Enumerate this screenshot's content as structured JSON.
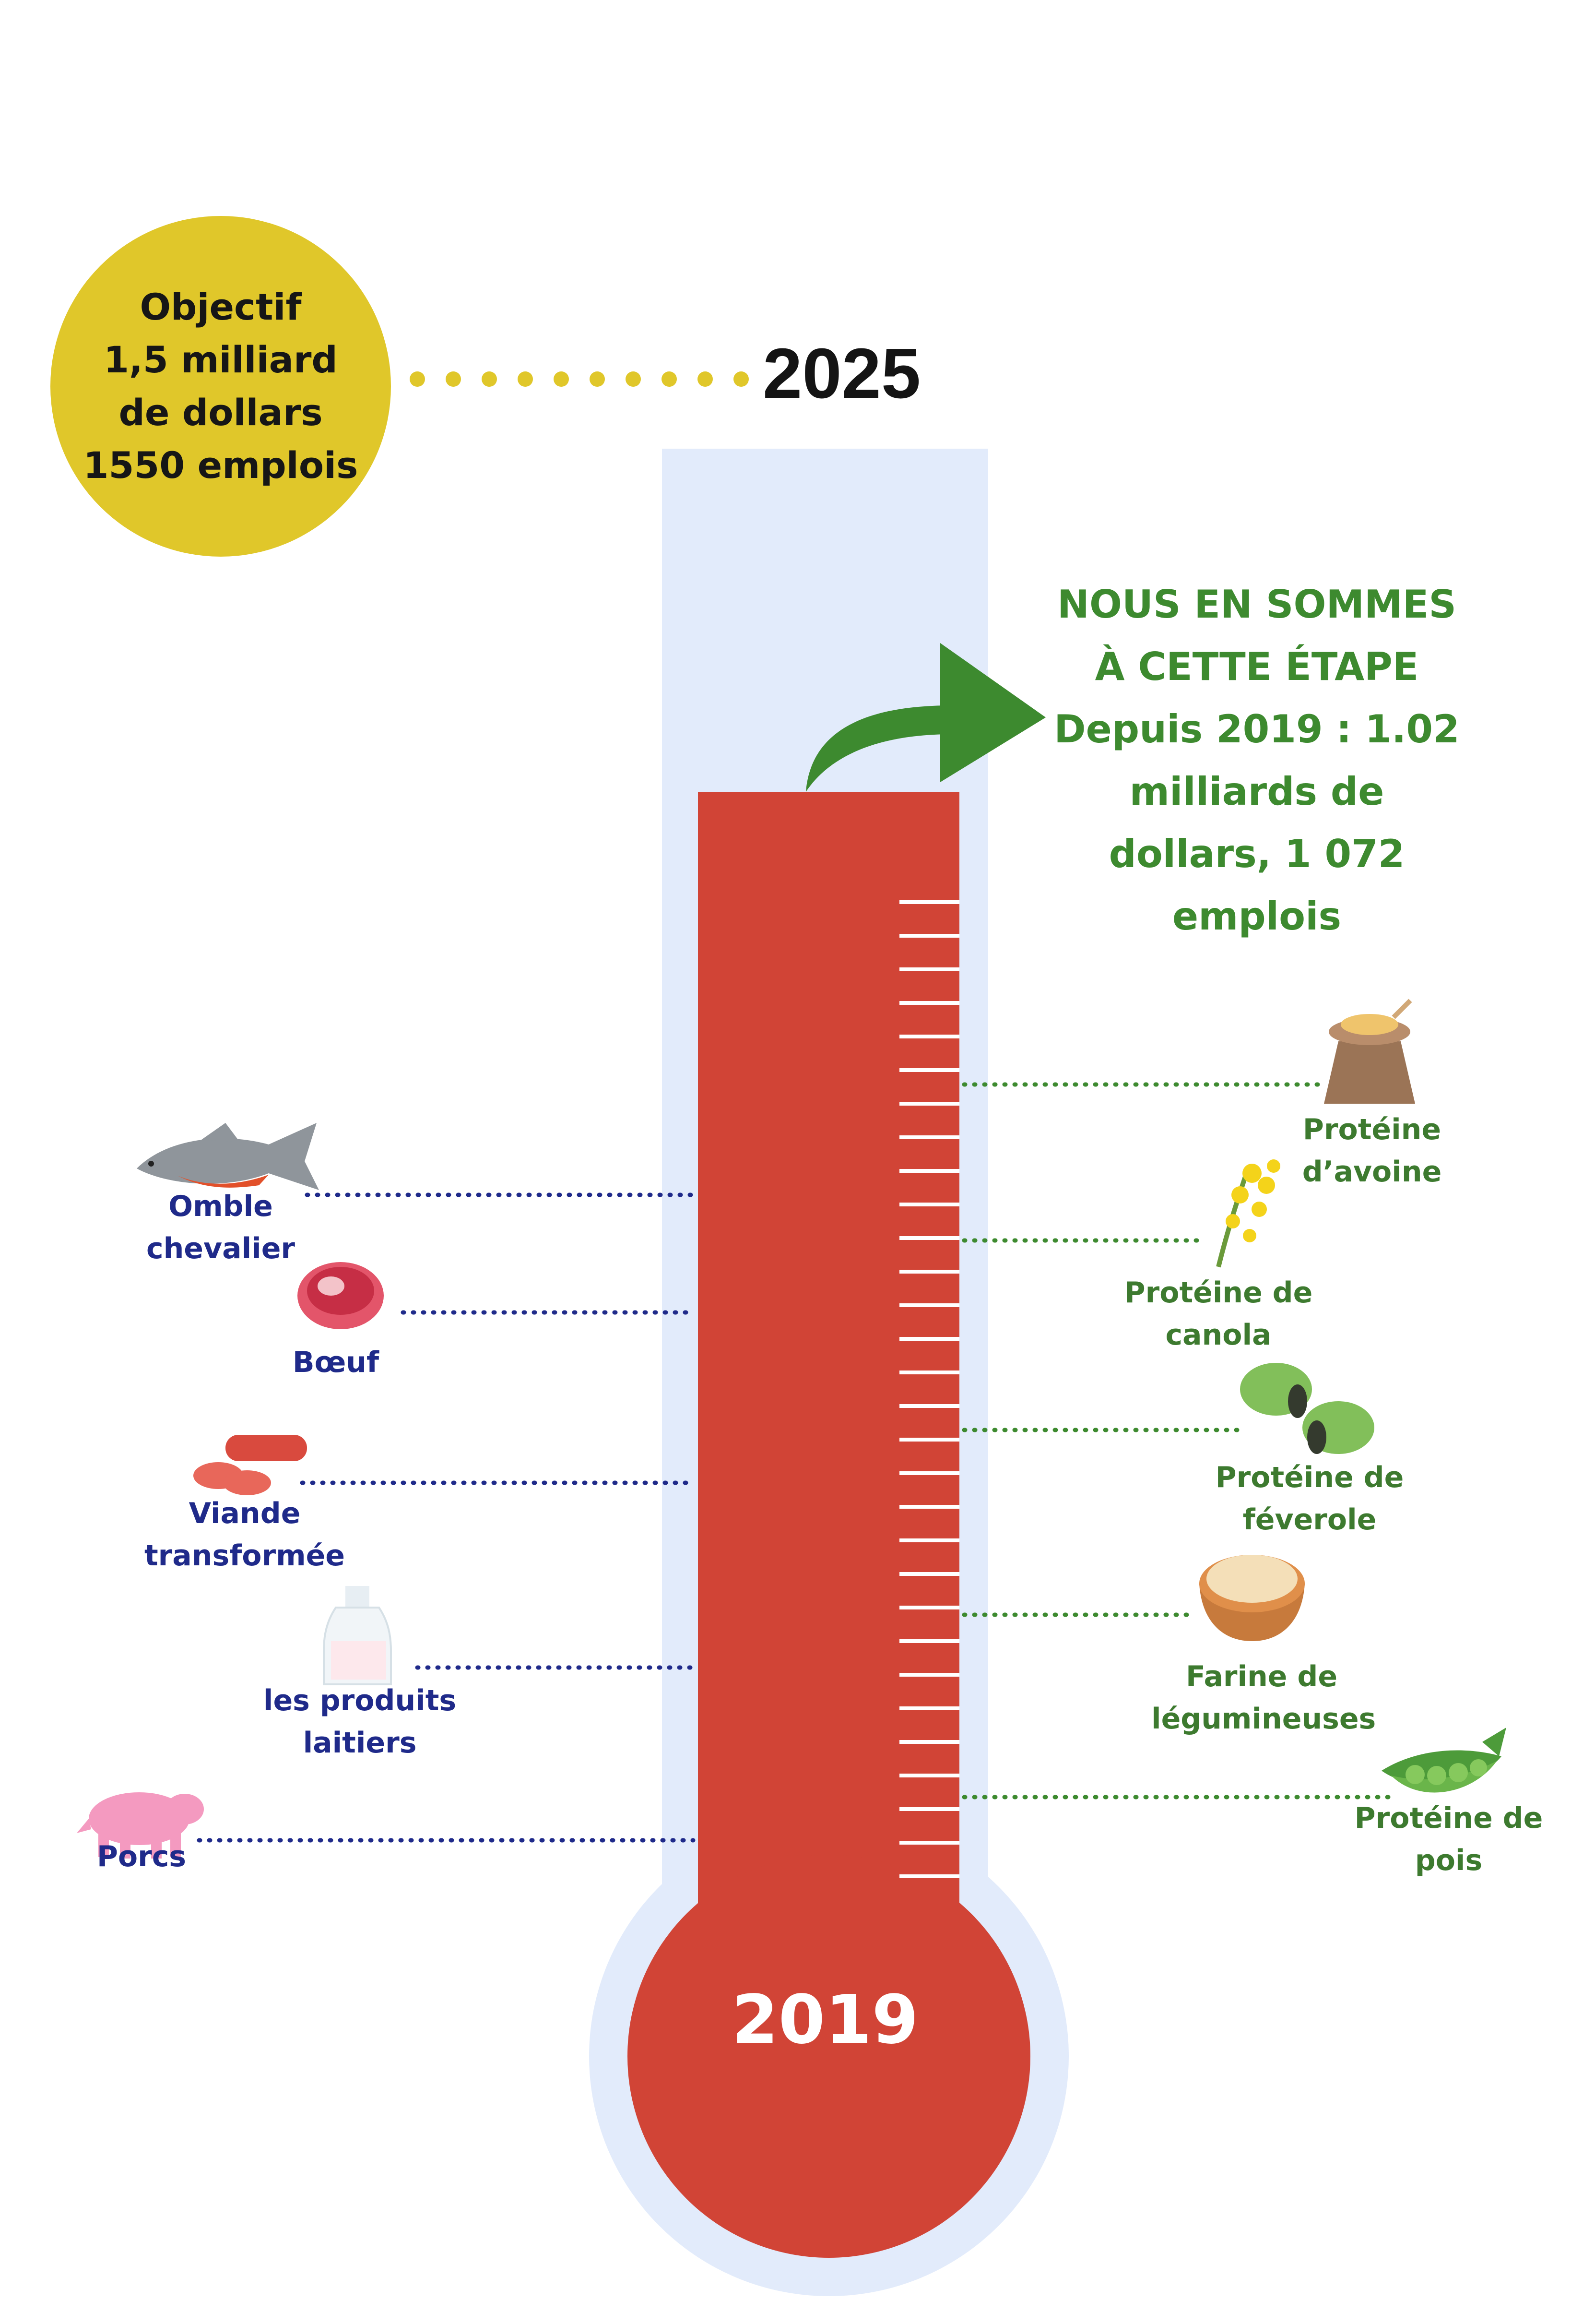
{
  "goal": {
    "lines": [
      "Objectif",
      "1,5 milliard",
      "de dollars",
      "1550 emplois"
    ],
    "color": "#e0c72a"
  },
  "target_year": "2025",
  "start_year": "2019",
  "status": {
    "lines": [
      "NOUS EN SOMMES",
      "À CETTE ÉTAPE",
      "Depuis 2019 : 1.02",
      "milliards de",
      "dollars, 1 072",
      "emplois"
    ],
    "color": "#3d8a2f"
  },
  "progress": {
    "current_amount_billion": 1.02,
    "goal_amount_billion": 1.5,
    "current_jobs": 1072,
    "goal_jobs": 1550
  },
  "colors": {
    "thermometer_fill": "#d14436",
    "thermometer_outer": "#e2ebfb",
    "animal_labels": "#1f2a8a",
    "plant_labels": "#3d7a2f"
  },
  "animal_sectors": [
    {
      "lines": [
        "Omble",
        "chevalier"
      ],
      "icon": "fish-icon"
    },
    {
      "lines": [
        "Bœuf"
      ],
      "icon": "steak-icon"
    },
    {
      "lines": [
        "Viande",
        "transformée"
      ],
      "icon": "sausage-icon"
    },
    {
      "lines": [
        "les produits",
        "laitiers"
      ],
      "icon": "milk-bottle-icon"
    },
    {
      "lines": [
        "Porcs"
      ],
      "icon": "pig-icon"
    }
  ],
  "plant_sectors": [
    {
      "lines": [
        "Protéine",
        "d’avoine"
      ],
      "icon": "oat-sack-icon"
    },
    {
      "lines": [
        "Protéine de",
        "canola"
      ],
      "icon": "canola-flower-icon"
    },
    {
      "lines": [
        "Protéine de",
        "féverole"
      ],
      "icon": "fava-bean-icon"
    },
    {
      "lines": [
        "Farine de",
        "légumineuses"
      ],
      "icon": "flour-bowl-icon"
    },
    {
      "lines": [
        "Protéine de",
        "pois"
      ],
      "icon": "pea-pod-icon"
    }
  ]
}
